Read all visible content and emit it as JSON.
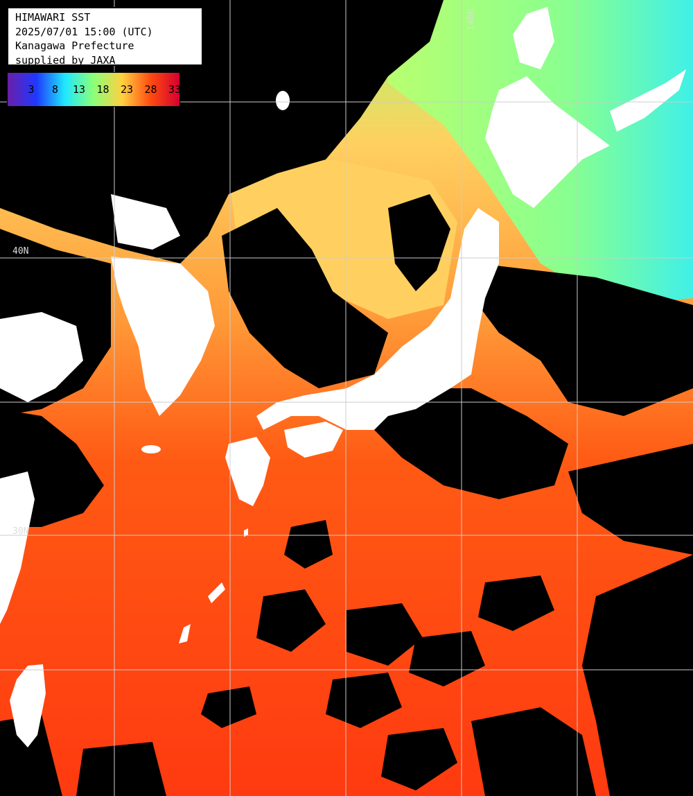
{
  "header": {
    "line1": "HIMAWARI SST",
    "line2": "2025/07/01 15:00 (UTC)",
    "line3": "Kanagawa Prefecture",
    "line4": "supplied by JAXA"
  },
  "colorbar": {
    "ticks": [
      "3",
      "8",
      "13",
      "18",
      "23",
      "28",
      "33"
    ],
    "colors": [
      "#6a1fa8",
      "#1f38ff",
      "#1fe8ff",
      "#8cff78",
      "#ffd040",
      "#ff4a10",
      "#d40030"
    ]
  },
  "grid": {
    "lat_labels": [
      "40N",
      "30N"
    ],
    "lon_labels": [
      "140E"
    ]
  },
  "colors": {
    "land": "#ffffff",
    "cloud": "#000000",
    "grid": "#cccccc",
    "sea_warm": "#ff4a10",
    "sea_mild": "#ff9a38",
    "sea_cool": "#ffd060",
    "sea_cold": "#b8ff70",
    "sea_coldest": "#50ffd8"
  }
}
